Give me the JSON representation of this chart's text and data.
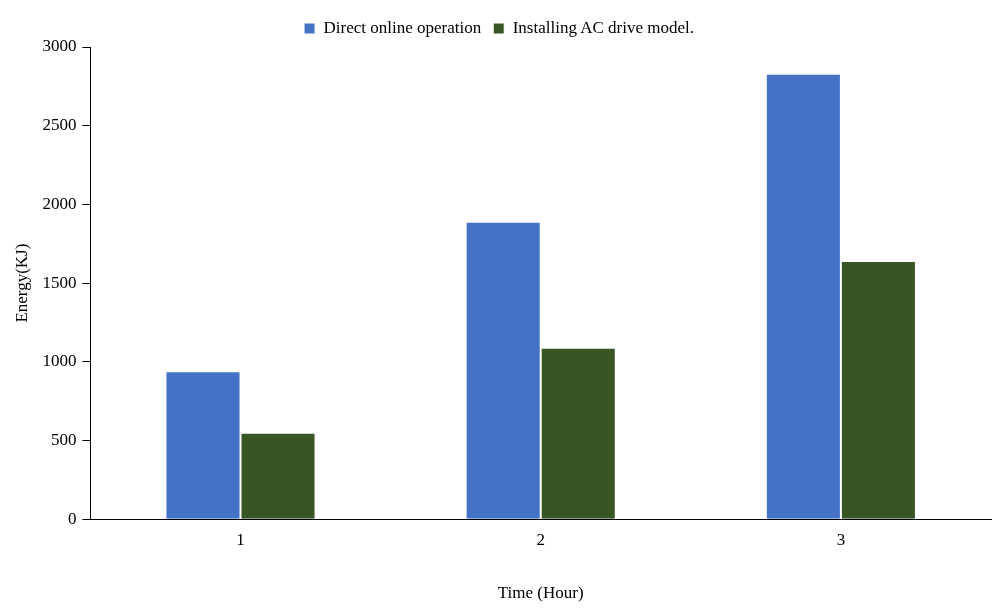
{
  "chart_data": {
    "type": "bar",
    "xlabel": "Time (Hour)",
    "ylabel": "Energy(KJ)",
    "categories": [
      "1",
      "2",
      "3"
    ],
    "series": [
      {
        "name": "Direct online operation",
        "color": "#4472c4",
        "values": [
          940,
          1890,
          2830
        ]
      },
      {
        "name": "Installing AC drive model.",
        "color": "#375623",
        "values": [
          550,
          1090,
          1640
        ]
      }
    ],
    "ylim": [
      0,
      3000
    ],
    "yticks": [
      0,
      500,
      1000,
      1500,
      2000,
      2500,
      3000
    ],
    "grid": false,
    "legend": "top"
  }
}
